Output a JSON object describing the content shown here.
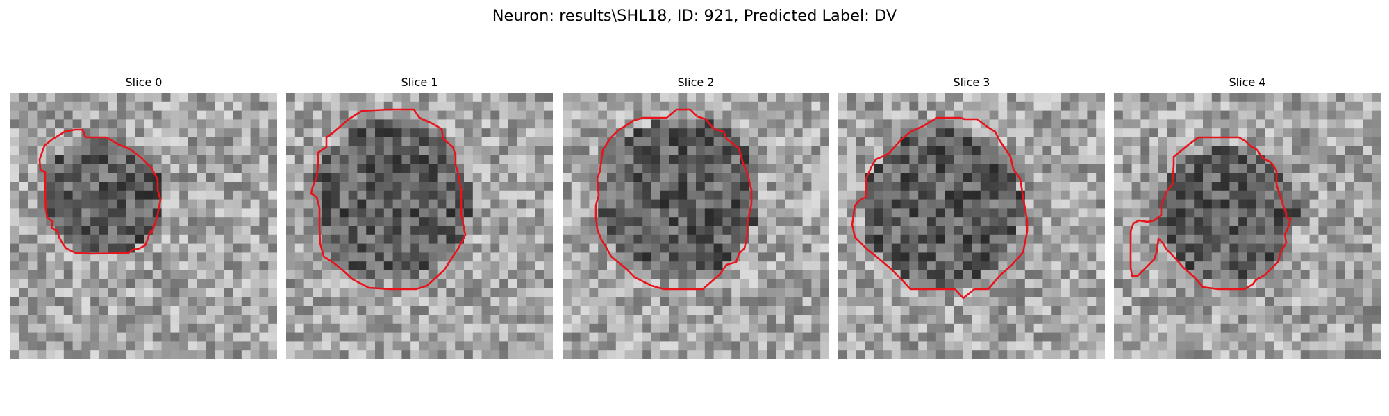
{
  "figure": {
    "title": "Neuron: results\\SHL18, ID: 921, Predicted Label: DV"
  },
  "panels": [
    {
      "title": "Slice 0"
    },
    {
      "title": "Slice 1"
    },
    {
      "title": "Slice 2"
    },
    {
      "title": "Slice 3"
    },
    {
      "title": "Slice 4"
    }
  ],
  "style": {
    "contour_color": "#e8141c",
    "colormap": "gray"
  }
}
